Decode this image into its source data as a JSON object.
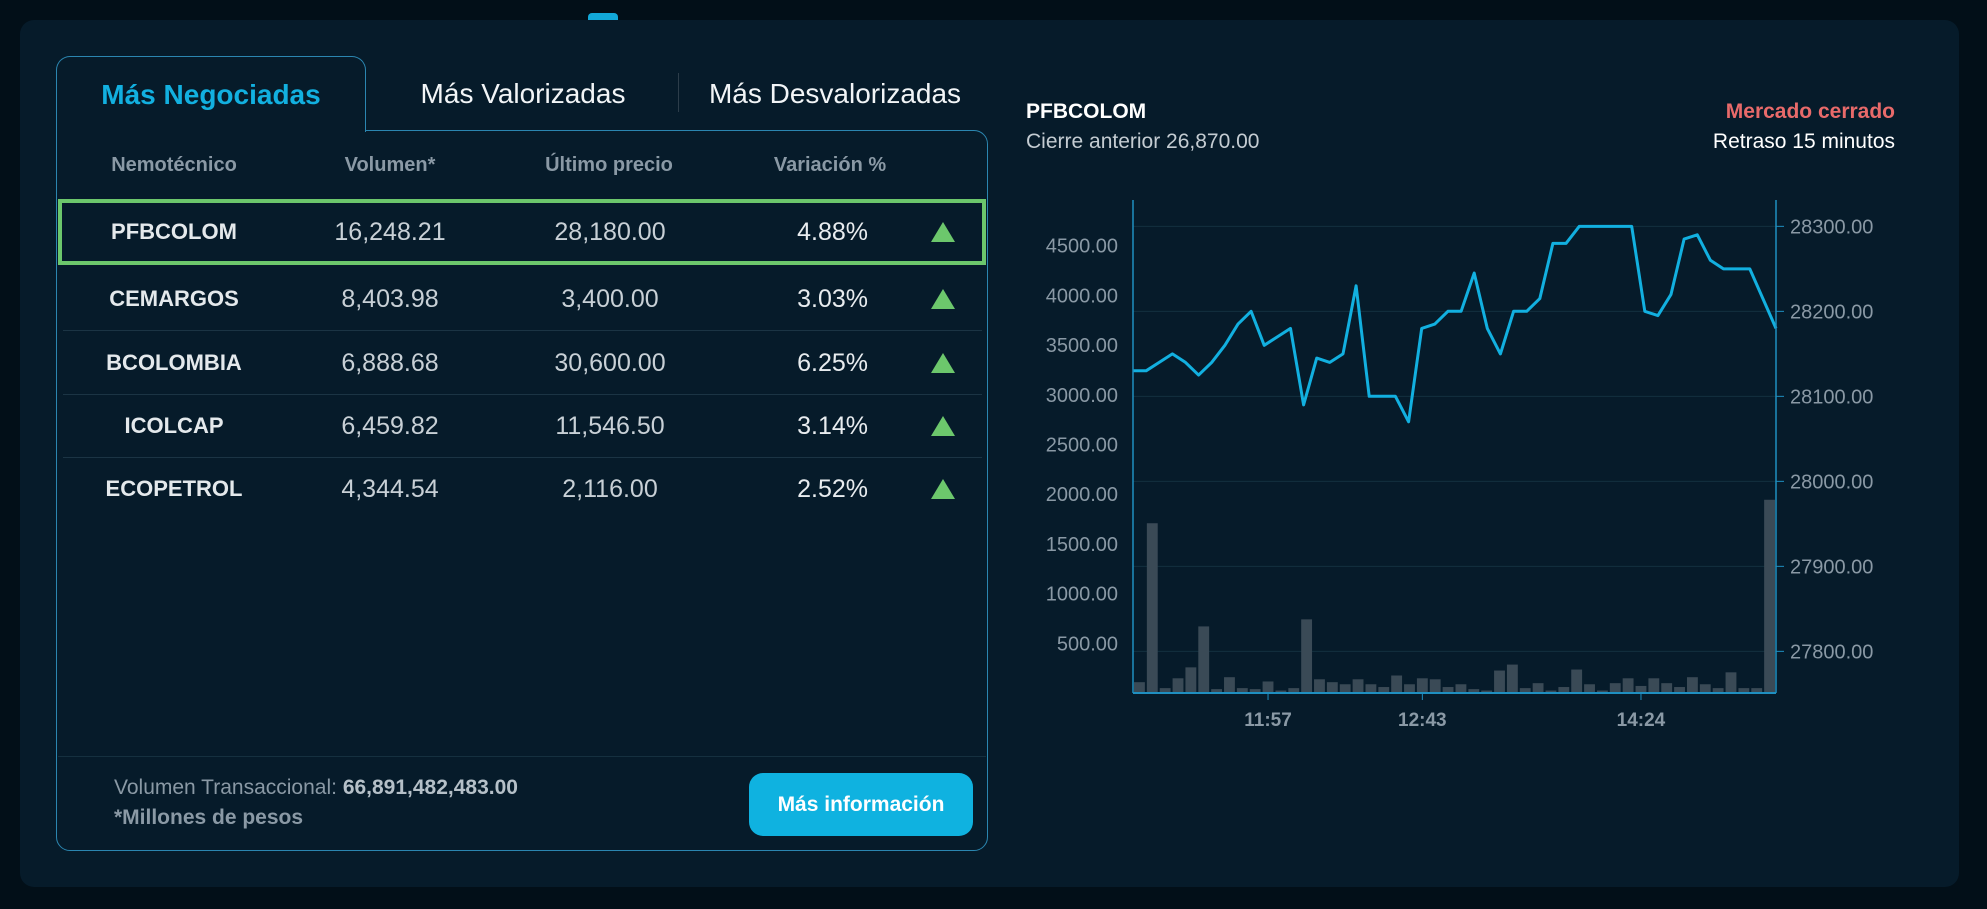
{
  "tabs": [
    {
      "label": "Más Negociadas",
      "active": true
    },
    {
      "label": "Más Valorizadas"
    },
    {
      "label": "Más Desvalorizadas"
    }
  ],
  "table": {
    "headers": [
      "Nemotécnico",
      "Volumen*",
      "Último precio",
      "Variación %"
    ],
    "rows": [
      {
        "name": "PFBCOLOM",
        "volume": "16,248.21",
        "price": "28,180.00",
        "variation": "4.88%",
        "trend": "up",
        "selected": true
      },
      {
        "name": "CEMARGOS",
        "volume": "8,403.98",
        "price": "3,400.00",
        "variation": "3.03%",
        "trend": "up"
      },
      {
        "name": "BCOLOMBIA",
        "volume": "6,888.68",
        "price": "30,600.00",
        "variation": "6.25%",
        "trend": "up"
      },
      {
        "name": "ICOLCAP",
        "volume": "6,459.82",
        "price": "11,546.50",
        "variation": "3.14%",
        "trend": "up"
      },
      {
        "name": "ECOPETROL",
        "volume": "4,344.54",
        "price": "2,116.00",
        "variation": "2.52%",
        "trend": "up"
      }
    ]
  },
  "footer": {
    "volume_label": "Volumen Transaccional:",
    "volume_value": "66,891,482,483.00",
    "note": "*Millones de pesos",
    "button": "Más información"
  },
  "detail": {
    "symbol": "PFBCOLOM",
    "previous_close": "Cierre anterior 26,870.00",
    "market_status": "Mercado cerrado",
    "delay": "Retraso 15 minutos"
  },
  "colors": {
    "accent": "#12b0e0",
    "up": "#6cc76c",
    "closed": "#e86a6a",
    "volume_bar": "#3a4a56"
  },
  "chart_data": {
    "type": "line+bar",
    "x_ticks": [
      {
        "index": 10,
        "label": "11:57"
      },
      {
        "index": 22,
        "label": "12:43"
      },
      {
        "index": 39,
        "label": "14:24"
      }
    ],
    "left_axis": {
      "ticks": [
        "500.00",
        "1000.00",
        "1500.00",
        "2000.00",
        "2500.00",
        "3000.00",
        "3500.00",
        "4000.00",
        "4500.00"
      ],
      "ylim": [
        0,
        4960
      ]
    },
    "right_axis": {
      "ticks": [
        "27800.00",
        "27900.00",
        "28000.00",
        "28100.00",
        "28200.00",
        "28300.00"
      ],
      "ylim": [
        27751,
        28331
      ]
    },
    "grid": true,
    "price": [
      28130,
      28130,
      28140,
      28150,
      28140,
      28125,
      28140,
      28160,
      28185,
      28200,
      28160,
      28170,
      28180,
      28090,
      28145,
      28140,
      28150,
      28230,
      28100,
      28100,
      28100,
      28070,
      28180,
      28185,
      28200,
      28200,
      28245,
      28180,
      28150,
      28200,
      28200,
      28215,
      28280,
      28280,
      28300,
      28300,
      28300,
      28300,
      28300,
      28200,
      28195,
      28220,
      28285,
      28290,
      28260,
      28250,
      28250,
      28250,
      28215,
      28180
    ],
    "volume": [
      109,
      1708,
      49,
      148,
      258,
      670,
      39,
      159,
      49,
      39,
      116,
      25,
      49,
      741,
      138,
      109,
      88,
      138,
      88,
      60,
      176,
      88,
      148,
      138,
      60,
      88,
      39,
      25,
      226,
      286,
      49,
      99,
      25,
      60,
      236,
      88,
      25,
      99,
      148,
      71,
      148,
      99,
      60,
      159,
      88,
      49,
      208,
      49,
      49,
      1944
    ]
  }
}
